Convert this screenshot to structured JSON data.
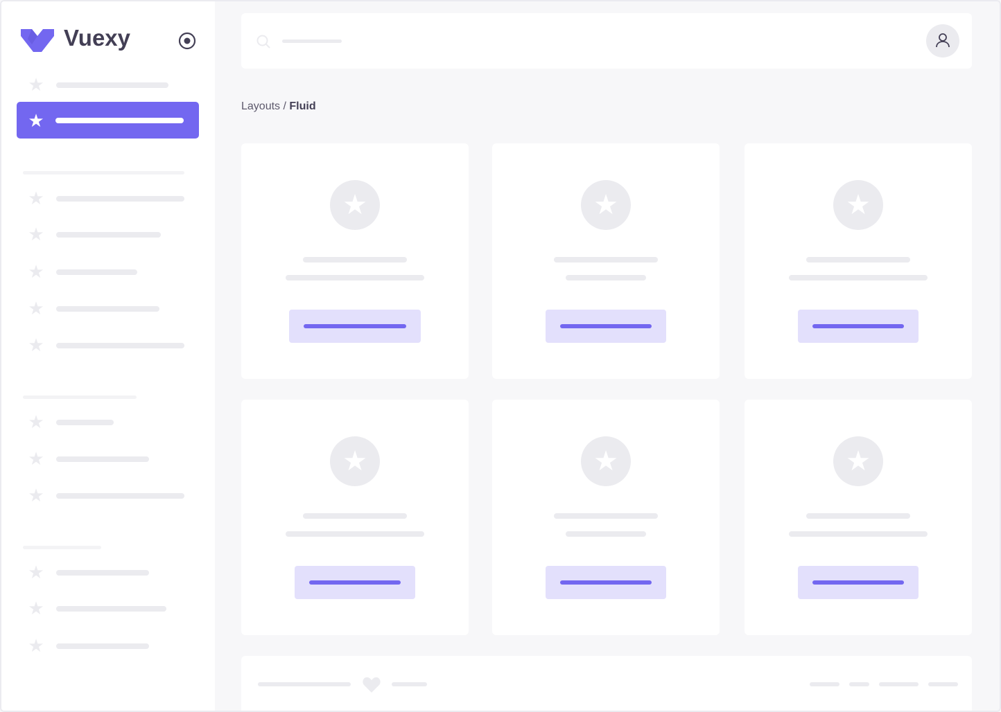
{
  "brand": {
    "name": "Vuexy",
    "logo_color": "#7367f0"
  },
  "sidebar": {
    "toggle_icon": "radio-circle-icon",
    "active_color": "#7367f0"
  },
  "header": {
    "search_icon": "search-icon",
    "user_icon": "user-icon"
  },
  "breadcrumb": {
    "parent": "Layouts",
    "separator": " / ",
    "current": "Fluid"
  },
  "footer": {
    "icon": "heart-icon"
  },
  "colors": {
    "primary": "#7367f0",
    "primary_light": "#e3e0fc",
    "skeleton": "#ebebef",
    "background": "#f7f7f9"
  }
}
